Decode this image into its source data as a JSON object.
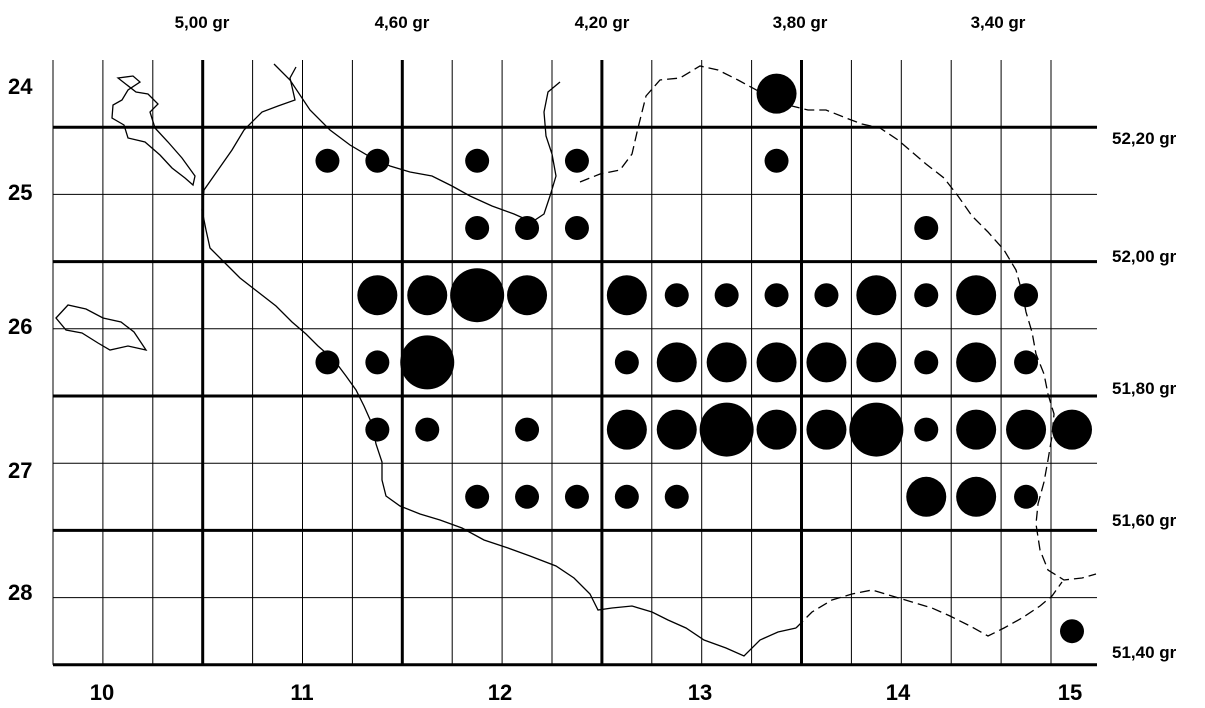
{
  "map": {
    "top_longitude_labels": [
      "5,00 gr",
      "4,60 gr",
      "4,20 gr",
      "3,80 gr",
      "3,40 gr"
    ],
    "right_latitude_labels": [
      "52,20 gr",
      "52,00 gr",
      "51,80 gr",
      "51,60 gr",
      "51,40 gr"
    ],
    "left_row_labels": [
      "24",
      "25",
      "26",
      "27",
      "28"
    ],
    "bottom_column_labels": [
      "10",
      "11",
      "12",
      "13",
      "14",
      "15"
    ],
    "colors": {
      "lines": "#000000",
      "dots": "#000000",
      "background": "#ffffff"
    }
  },
  "chart_data": {
    "type": "grid-distribution-map",
    "grid": {
      "columns": 20,
      "rows": 9
    },
    "dot_size_classes": [
      1,
      2,
      3
    ],
    "dots": [
      {
        "col": 14,
        "row": 0,
        "size": 2
      },
      {
        "col": 5,
        "row": 1,
        "size": 1
      },
      {
        "col": 6,
        "row": 1,
        "size": 1
      },
      {
        "col": 8,
        "row": 1,
        "size": 1
      },
      {
        "col": 10,
        "row": 1,
        "size": 1
      },
      {
        "col": 14,
        "row": 1,
        "size": 1
      },
      {
        "col": 8,
        "row": 2,
        "size": 1
      },
      {
        "col": 9,
        "row": 2,
        "size": 1
      },
      {
        "col": 10,
        "row": 2,
        "size": 1
      },
      {
        "col": 17,
        "row": 2,
        "size": 1
      },
      {
        "col": 6,
        "row": 3,
        "size": 2
      },
      {
        "col": 7,
        "row": 3,
        "size": 2
      },
      {
        "col": 8,
        "row": 3,
        "size": 3
      },
      {
        "col": 9,
        "row": 3,
        "size": 2
      },
      {
        "col": 11,
        "row": 3,
        "size": 2
      },
      {
        "col": 12,
        "row": 3,
        "size": 1
      },
      {
        "col": 13,
        "row": 3,
        "size": 1
      },
      {
        "col": 14,
        "row": 3,
        "size": 1
      },
      {
        "col": 15,
        "row": 3,
        "size": 1
      },
      {
        "col": 16,
        "row": 3,
        "size": 2
      },
      {
        "col": 17,
        "row": 3,
        "size": 1
      },
      {
        "col": 18,
        "row": 3,
        "size": 2
      },
      {
        "col": 19,
        "row": 3,
        "size": 1
      },
      {
        "col": 5,
        "row": 4,
        "size": 1
      },
      {
        "col": 6,
        "row": 4,
        "size": 1
      },
      {
        "col": 7,
        "row": 4,
        "size": 3
      },
      {
        "col": 11,
        "row": 4,
        "size": 1
      },
      {
        "col": 12,
        "row": 4,
        "size": 2
      },
      {
        "col": 13,
        "row": 4,
        "size": 2
      },
      {
        "col": 14,
        "row": 4,
        "size": 2
      },
      {
        "col": 15,
        "row": 4,
        "size": 2
      },
      {
        "col": 16,
        "row": 4,
        "size": 2
      },
      {
        "col": 17,
        "row": 4,
        "size": 1
      },
      {
        "col": 18,
        "row": 4,
        "size": 2
      },
      {
        "col": 19,
        "row": 4,
        "size": 1
      },
      {
        "col": 6,
        "row": 5,
        "size": 1
      },
      {
        "col": 7,
        "row": 5,
        "size": 1
      },
      {
        "col": 9,
        "row": 5,
        "size": 1
      },
      {
        "col": 11,
        "row": 5,
        "size": 2
      },
      {
        "col": 12,
        "row": 5,
        "size": 2
      },
      {
        "col": 13,
        "row": 5,
        "size": 3
      },
      {
        "col": 14,
        "row": 5,
        "size": 2
      },
      {
        "col": 15,
        "row": 5,
        "size": 2
      },
      {
        "col": 16,
        "row": 5,
        "size": 3
      },
      {
        "col": 17,
        "row": 5,
        "size": 1
      },
      {
        "col": 18,
        "row": 5,
        "size": 2
      },
      {
        "col": 19,
        "row": 5,
        "size": 2
      },
      {
        "col": 20,
        "row": 5,
        "size": 2
      },
      {
        "col": 8,
        "row": 6,
        "size": 1
      },
      {
        "col": 9,
        "row": 6,
        "size": 1
      },
      {
        "col": 10,
        "row": 6,
        "size": 1
      },
      {
        "col": 11,
        "row": 6,
        "size": 1
      },
      {
        "col": 12,
        "row": 6,
        "size": 1
      },
      {
        "col": 17,
        "row": 6,
        "size": 2
      },
      {
        "col": 18,
        "row": 6,
        "size": 2
      },
      {
        "col": 19,
        "row": 6,
        "size": 1
      },
      {
        "col": 20,
        "row": 8,
        "size": 1
      }
    ]
  }
}
